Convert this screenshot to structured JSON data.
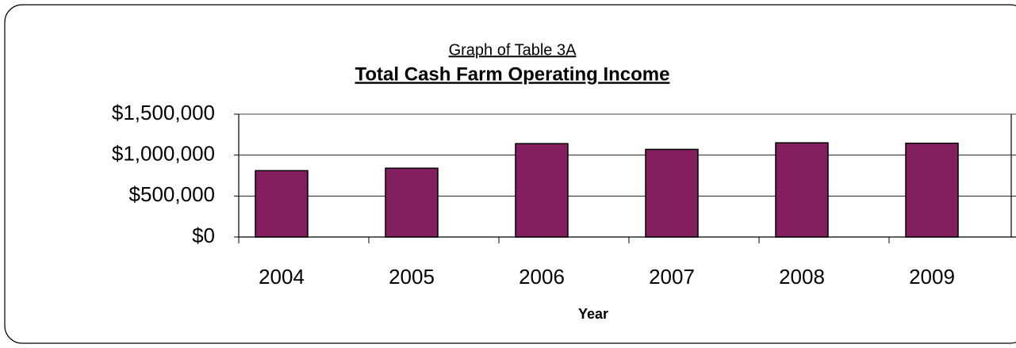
{
  "chart_data": {
    "type": "bar",
    "subtitle": "Graph of Table 3A",
    "title": "Total Cash Farm Operating Income",
    "x_label": "Year",
    "categories": [
      "2004",
      "2005",
      "2006",
      "2007",
      "2008",
      "2009"
    ],
    "values": [
      810000,
      840000,
      1140000,
      1070000,
      1150000,
      1145000
    ],
    "color": "#831f5e",
    "ylim": [
      0,
      1500000
    ],
    "yticks": [
      {
        "value": 0,
        "label": "$0"
      },
      {
        "value": 500000,
        "label": "$500,000"
      },
      {
        "value": 1000000,
        "label": "$1,000,000"
      },
      {
        "value": 1500000,
        "label": "$1,500,000"
      }
    ],
    "grid": true
  }
}
